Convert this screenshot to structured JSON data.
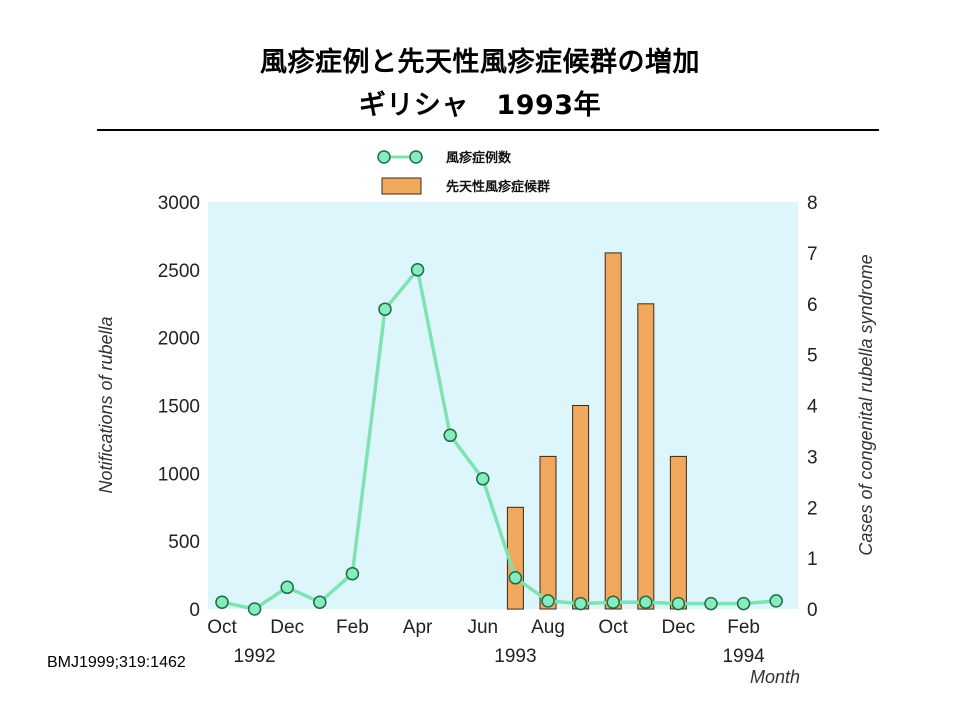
{
  "title": {
    "line1": "風疹症例と先天性風疹症候群の増加",
    "line2": "ギリシャ　1993年"
  },
  "source": "BMJ1999;319:1462",
  "colors": {
    "plot_bg": "#dcf6fb",
    "line": "#7ee3b1",
    "marker_fill": "#86ecbc",
    "marker_stroke": "#1f6b4a",
    "bar_fill": "#f0a85c",
    "bar_stroke": "#3a2a1a"
  },
  "chart_data": {
    "type": "bar",
    "xlabel": "Month",
    "ylabel_left": "Notifications of rubella",
    "ylabel_right": "Cases of congenital rubella syndrome",
    "ylim_left": [
      0,
      3000
    ],
    "ylim_right": [
      0,
      8
    ],
    "yticks_left": [
      "0",
      "500",
      "1000",
      "1500",
      "2000",
      "2500",
      "3000"
    ],
    "yticks_right": [
      "0",
      "1",
      "2",
      "3",
      "4",
      "5",
      "6",
      "7",
      "8"
    ],
    "x_tick_labels": [
      "Oct",
      "Dec",
      "Feb",
      "Apr",
      "Jun",
      "Aug",
      "Oct",
      "Dec",
      "Feb"
    ],
    "year_labels": [
      "1992",
      "1993",
      "1994"
    ],
    "legend_placement": "top",
    "months": [
      "1992-10",
      "1992-11",
      "1992-12",
      "1993-01",
      "1993-02",
      "1993-03",
      "1993-04",
      "1993-05",
      "1993-06",
      "1993-07",
      "1993-08",
      "1993-09",
      "1993-10",
      "1993-11",
      "1993-12",
      "1994-01",
      "1994-02",
      "1994-03"
    ],
    "series": [
      {
        "name": "風疹症例数",
        "type": "line",
        "axis": "left",
        "values": [
          50,
          0,
          160,
          50,
          260,
          2210,
          2500,
          1280,
          960,
          230,
          60,
          40,
          50,
          50,
          40,
          40,
          40,
          60
        ]
      },
      {
        "name": "先天性風疹症候群",
        "type": "bar",
        "axis": "right",
        "values": [
          null,
          null,
          null,
          null,
          null,
          null,
          null,
          null,
          null,
          2,
          3,
          4,
          7,
          6,
          3,
          null,
          null,
          null
        ]
      }
    ]
  }
}
